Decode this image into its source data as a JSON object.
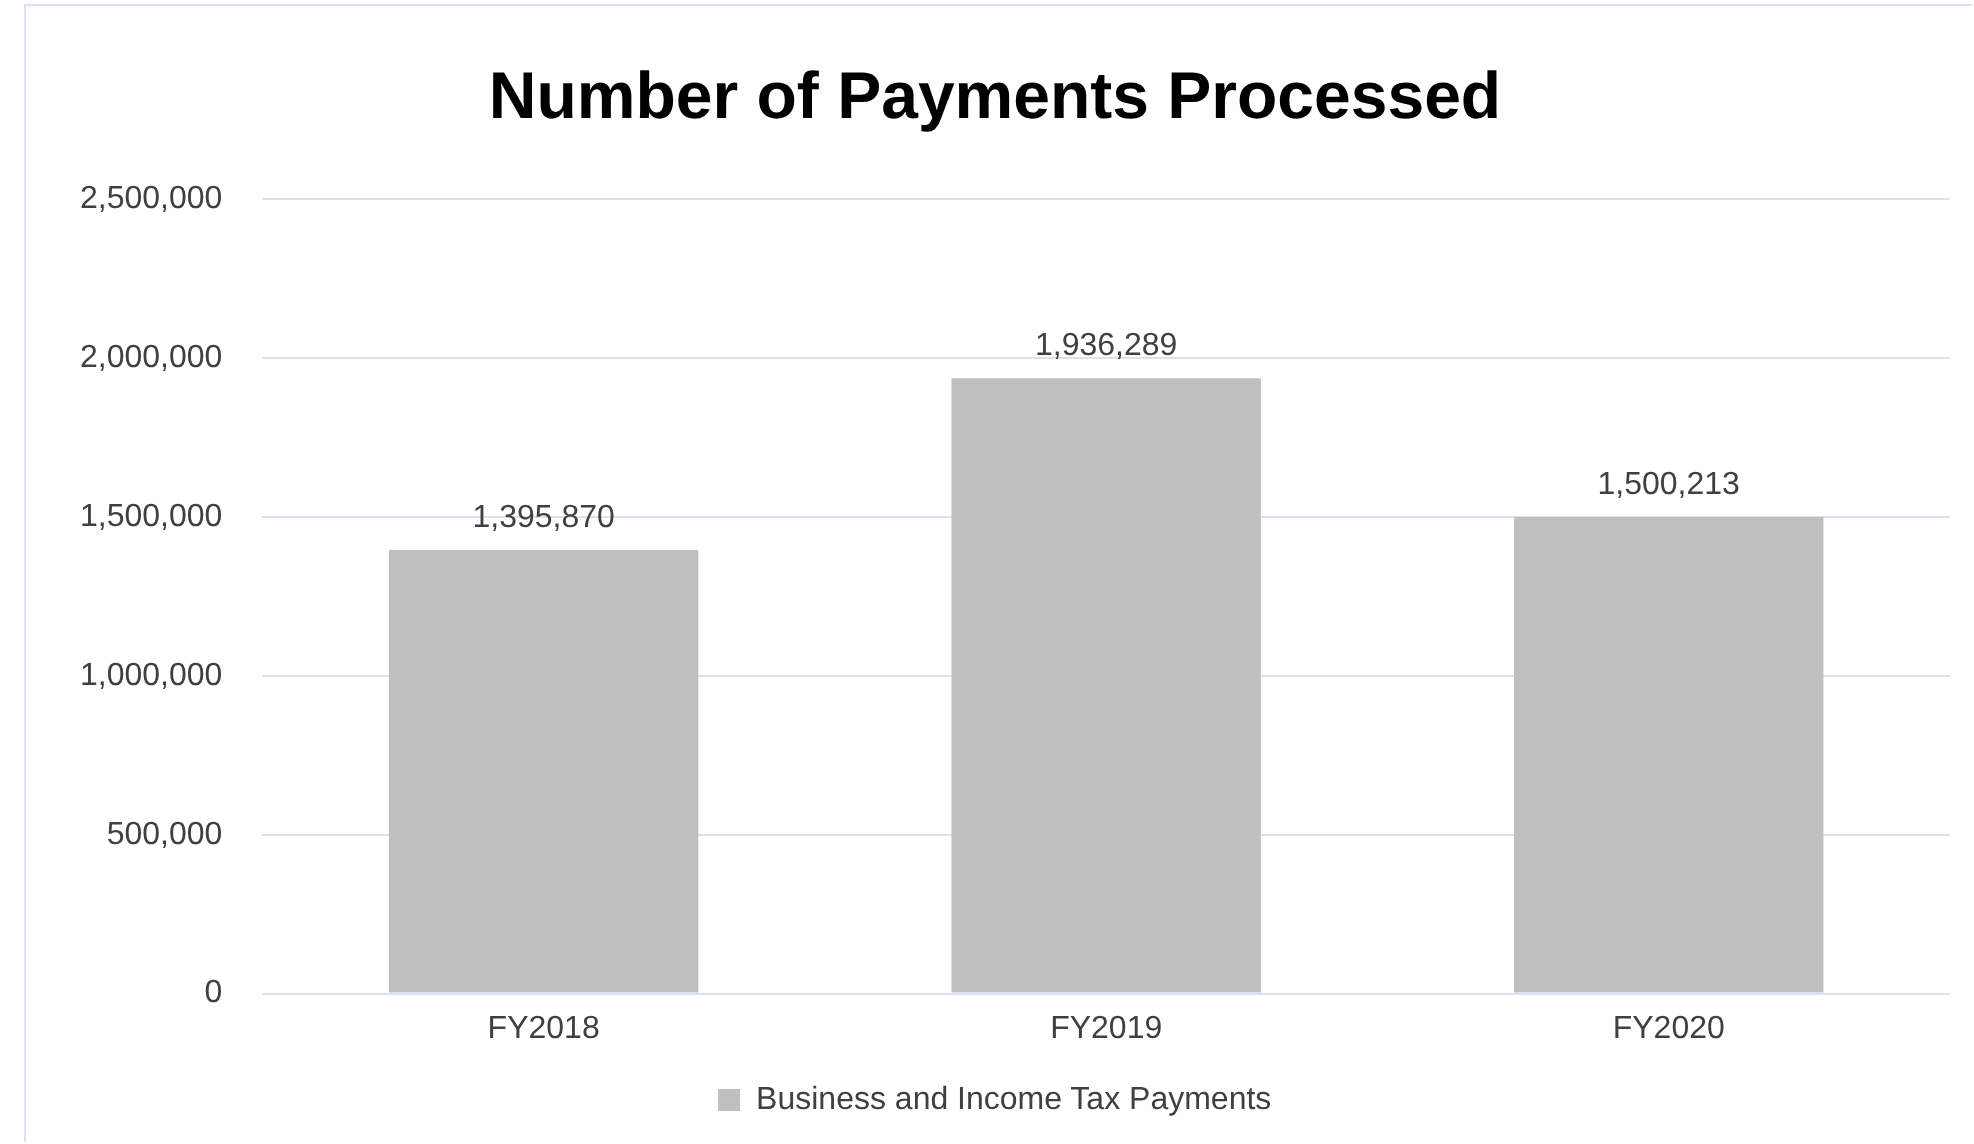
{
  "chart_data": {
    "type": "bar",
    "title": "Number of Payments Processed",
    "categories": [
      "FY2018",
      "FY2019",
      "FY2020"
    ],
    "series": [
      {
        "name": "Business and Income Tax Payments",
        "color": "#bfbfbf",
        "values": [
          1395870,
          1936289,
          1500213
        ],
        "value_labels": [
          "1,395,870",
          "1,936,289",
          "1,500,213"
        ]
      }
    ],
    "ylim": [
      0,
      2500000
    ],
    "yticks": [
      {
        "value": 0,
        "label": "0"
      },
      {
        "value": 500000,
        "label": "500,000"
      },
      {
        "value": 1000000,
        "label": "1,000,000"
      },
      {
        "value": 1500000,
        "label": "1,500,000"
      },
      {
        "value": 2000000,
        "label": "2,000,000"
      },
      {
        "value": 2500000,
        "label": "2,500,000"
      }
    ],
    "grid": "y",
    "legend": "bottom"
  }
}
